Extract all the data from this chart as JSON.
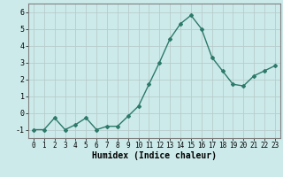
{
  "x": [
    0,
    1,
    2,
    3,
    4,
    5,
    6,
    7,
    8,
    9,
    10,
    11,
    12,
    13,
    14,
    15,
    16,
    17,
    18,
    19,
    20,
    21,
    22,
    23
  ],
  "y": [
    -1.0,
    -1.0,
    -0.3,
    -1.0,
    -0.7,
    -0.3,
    -1.0,
    -0.8,
    -0.8,
    -0.2,
    0.4,
    1.7,
    3.0,
    4.4,
    5.3,
    5.8,
    5.0,
    3.3,
    2.5,
    1.7,
    1.6,
    2.2,
    2.5,
    2.8
  ],
  "xlabel": "Humidex (Indice chaleur)",
  "line_color": "#2d7a6a",
  "marker_size": 2.0,
  "line_width": 1.0,
  "bg_color": "#cdeaea",
  "grid_color": "#b8cccc",
  "xlabel_fontsize": 7.0,
  "tick_fontsize": 5.5,
  "ytick_vals": [
    -1,
    0,
    1,
    2,
    3,
    4,
    5,
    6
  ],
  "xlim": [
    -0.5,
    23.5
  ],
  "ylim": [
    -1.5,
    6.5
  ]
}
